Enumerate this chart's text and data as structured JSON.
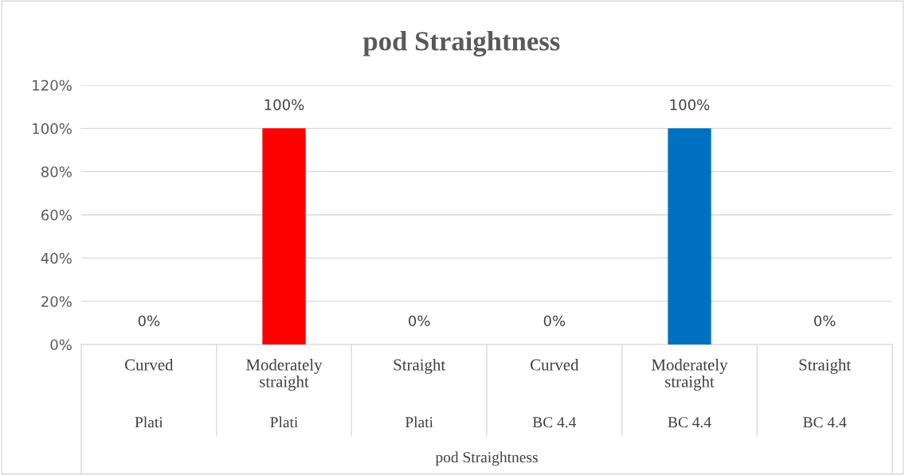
{
  "chart_data": {
    "type": "bar",
    "title": "pod Straightness",
    "xlabel": "pod Straightness",
    "categories": [
      "Curved",
      "Moderately straight",
      "Straight",
      "Curved",
      "Moderately straight",
      "Straight"
    ],
    "values": [
      0,
      100,
      0,
      0,
      100,
      0
    ],
    "colors": [
      "#ff0000",
      "#ff0000",
      "#ff0000",
      "#0070c0",
      "#0070c0",
      "#0070c0"
    ],
    "value_labels": [
      "0%",
      "100%",
      "0%",
      "0%",
      "100%",
      "0%"
    ],
    "annotations": [
      "Plati",
      "Plati",
      "Plati",
      "BC 4.4",
      "BC 4.4",
      "BC 4.4"
    ],
    "ylim": [
      0,
      120
    ],
    "yticks": [
      {
        "value": 0,
        "label": "0%"
      },
      {
        "value": 20,
        "label": "20%"
      },
      {
        "value": 40,
        "label": "40%"
      },
      {
        "value": 60,
        "label": "60%"
      },
      {
        "value": 80,
        "label": "80%"
      },
      {
        "value": 100,
        "label": "100%"
      },
      {
        "value": 120,
        "label": "120%"
      }
    ],
    "grid": "y",
    "legend": false
  }
}
